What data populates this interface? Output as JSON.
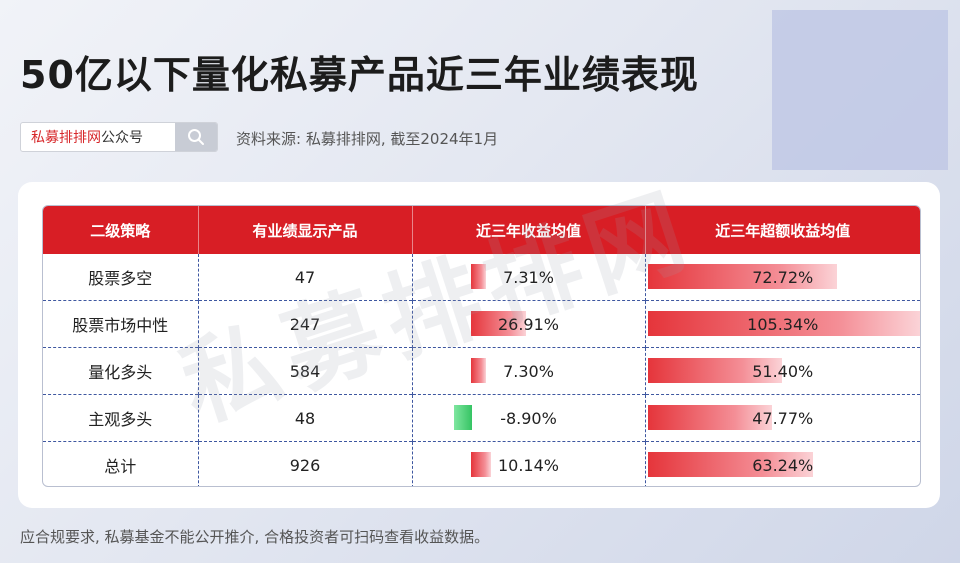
{
  "title": "50亿以下量化私募产品近三年业绩表现",
  "search": {
    "brand": "私募排排网",
    "suffix": "公众号",
    "icon": "search-icon"
  },
  "source": "资料来源: 私募排排网, 截至2024年1月",
  "watermark": "私募排排网",
  "disclaimer": "应合规要求, 私募基金不能公开推介, 合格投资者可扫码查看收益数据。",
  "colors": {
    "header": "#d81e25",
    "positive_bar": "#e5353b",
    "negative_bar": "#35c463"
  },
  "chart_data": {
    "type": "table",
    "columns": [
      "二级策略",
      "有业绩显示产品",
      "近三年收益均值",
      "近三年超额收益均值"
    ],
    "rows": [
      {
        "strategy": "股票多空",
        "count": "47",
        "ret": 7.31,
        "ret_label": "7.31%",
        "excess": 72.72,
        "excess_label": "72.72%"
      },
      {
        "strategy": "股票市场中性",
        "count": "247",
        "ret": 26.91,
        "ret_label": "26.91%",
        "excess": 105.34,
        "excess_label": "105.34%"
      },
      {
        "strategy": "量化多头",
        "count": "584",
        "ret": 7.3,
        "ret_label": "7.30%",
        "excess": 51.4,
        "excess_label": "51.40%"
      },
      {
        "strategy": "主观多头",
        "count": "48",
        "ret": -8.9,
        "ret_label": "-8.90%",
        "excess": 47.77,
        "excess_label": "47.77%"
      },
      {
        "strategy": "总计",
        "count": "926",
        "ret": 10.14,
        "ret_label": "10.14%",
        "excess": 63.24,
        "excess_label": "63.24%"
      }
    ]
  }
}
